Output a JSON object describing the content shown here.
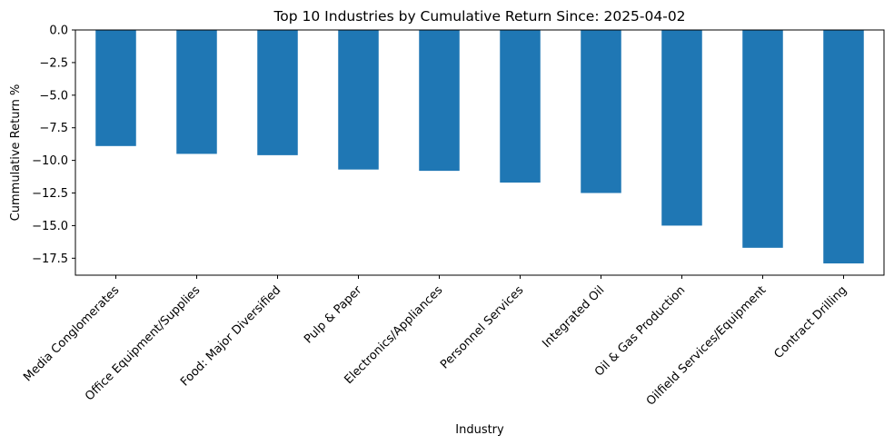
{
  "chart_data": {
    "type": "bar",
    "title": "Top 10 Industries by Cumulative Return Since: 2025-04-02",
    "xlabel": "Industry",
    "ylabel": "Cummulative Return %",
    "categories": [
      "Media Conglomerates",
      "Office Equipment/Supplies",
      "Food: Major Diversified",
      "Pulp & Paper",
      "Electronics/Appliances",
      "Personnel Services",
      "Integrated Oil",
      "Oil & Gas Production",
      "Oilfield Services/Equipment",
      "Contract Drilling"
    ],
    "values": [
      -8.9,
      -9.5,
      -9.6,
      -10.7,
      -10.8,
      -11.7,
      -12.5,
      -15.0,
      -16.7,
      -17.9
    ],
    "ylim": [
      -18.8,
      0
    ],
    "yticks": [
      0.0,
      -2.5,
      -5.0,
      -7.5,
      -10.0,
      -12.5,
      -15.0,
      -17.5
    ],
    "ytick_labels": [
      "0.0",
      "−2.5",
      "−5.0",
      "−7.5",
      "−10.0",
      "−12.5",
      "−15.0",
      "−17.5"
    ],
    "grid": false,
    "legend": "none",
    "bar_color": "#1f77b4"
  }
}
